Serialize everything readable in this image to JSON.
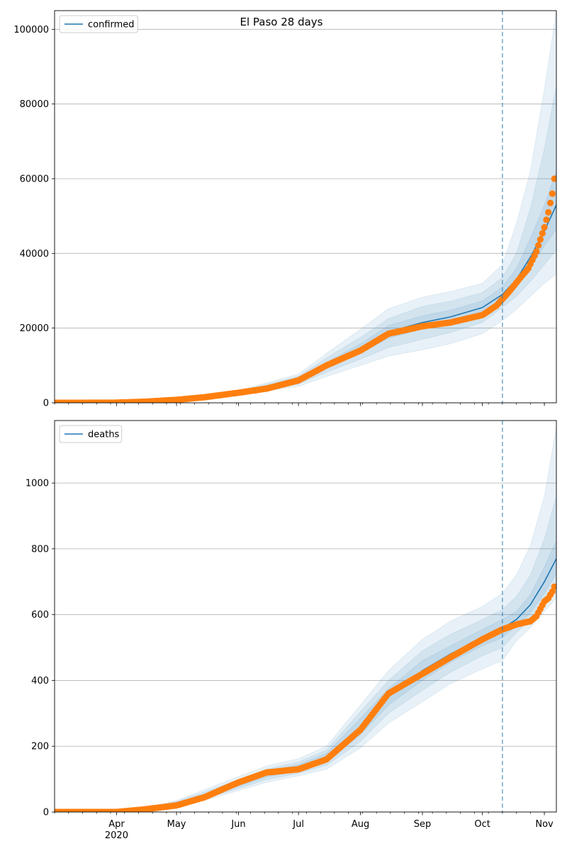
{
  "figure": {
    "title": "El Paso 28 days"
  },
  "colors": {
    "model": "#1f77b4",
    "observed": "#ff7f0e",
    "band": "#1f77b4",
    "grid": "#b0b0b0",
    "axis": "#000000"
  },
  "chart_data": [
    {
      "type": "line",
      "name": "confirmed",
      "legend": {
        "label": "confirmed",
        "position": "top-left"
      },
      "xlabel": "",
      "ylabel": "",
      "x_range": [
        "2020-03-01",
        "2020-11-07"
      ],
      "ylim": [
        0,
        105000
      ],
      "yticks": [
        0,
        20000,
        40000,
        60000,
        80000,
        100000
      ],
      "grid": "y",
      "forecast_start": "2020-10-11",
      "model_line": {
        "x": [
          "2020-03-01",
          "2020-03-15",
          "2020-04-01",
          "2020-04-15",
          "2020-05-01",
          "2020-05-15",
          "2020-06-01",
          "2020-06-15",
          "2020-07-01",
          "2020-07-15",
          "2020-08-01",
          "2020-08-15",
          "2020-09-01",
          "2020-09-15",
          "2020-10-01",
          "2020-10-11",
          "2020-10-18",
          "2020-10-25",
          "2020-11-01",
          "2020-11-07"
        ],
        "y": [
          0,
          0,
          50,
          300,
          800,
          1500,
          2700,
          3800,
          6000,
          10000,
          14500,
          19000,
          21500,
          23000,
          25500,
          29000,
          33000,
          39000,
          46000,
          53000
        ]
      },
      "bands": [
        {
          "level": "outer",
          "x": [
            "2020-03-01",
            "2020-04-01",
            "2020-05-01",
            "2020-06-01",
            "2020-07-01",
            "2020-07-15",
            "2020-08-01",
            "2020-08-15",
            "2020-09-01",
            "2020-09-15",
            "2020-10-01",
            "2020-10-11",
            "2020-10-18",
            "2020-10-25",
            "2020-11-01",
            "2020-11-07"
          ],
          "lower": [
            0,
            40,
            650,
            2100,
            4400,
            7000,
            10000,
            12500,
            14200,
            15800,
            18500,
            22000,
            25000,
            28500,
            32000,
            34500
          ],
          "upper": [
            0,
            60,
            950,
            3300,
            7700,
            13200,
            19700,
            25200,
            28300,
            29800,
            32000,
            37000,
            48000,
            62000,
            84000,
            105000
          ]
        },
        {
          "level": "middle",
          "x": [
            "2020-03-01",
            "2020-04-01",
            "2020-05-01",
            "2020-06-01",
            "2020-07-01",
            "2020-07-15",
            "2020-08-01",
            "2020-08-15",
            "2020-09-01",
            "2020-09-15",
            "2020-10-01",
            "2020-10-11",
            "2020-10-18",
            "2020-10-25",
            "2020-11-01",
            "2020-11-07"
          ],
          "lower": [
            0,
            45,
            700,
            2350,
            5000,
            8200,
            11700,
            14800,
            17000,
            18800,
            21500,
            25500,
            28500,
            32500,
            37000,
            41000
          ],
          "upper": [
            0,
            55,
            900,
            3050,
            7100,
            12000,
            17500,
            22500,
            25800,
            27200,
            29500,
            33500,
            40000,
            52000,
            68000,
            85000
          ]
        },
        {
          "level": "inner",
          "x": [
            "2020-03-01",
            "2020-04-01",
            "2020-05-01",
            "2020-06-01",
            "2020-07-01",
            "2020-07-15",
            "2020-08-01",
            "2020-08-15",
            "2020-09-01",
            "2020-09-15",
            "2020-10-01",
            "2020-10-11",
            "2020-10-18",
            "2020-10-25",
            "2020-11-01",
            "2020-11-07"
          ],
          "lower": [
            0,
            48,
            760,
            2550,
            5500,
            9200,
            13200,
            17300,
            19700,
            21200,
            23700,
            27500,
            31000,
            36000,
            42000,
            46500
          ],
          "upper": [
            0,
            52,
            840,
            2850,
            6500,
            10800,
            15800,
            20700,
            23300,
            24800,
            27300,
            31000,
            36000,
            44000,
            53000,
            62000
          ]
        }
      ],
      "observed": {
        "x": [
          "2020-03-01",
          "2020-03-15",
          "2020-04-01",
          "2020-04-15",
          "2020-05-01",
          "2020-05-15",
          "2020-06-01",
          "2020-06-15",
          "2020-07-01",
          "2020-07-15",
          "2020-08-01",
          "2020-08-15",
          "2020-09-01",
          "2020-09-15",
          "2020-10-01",
          "2020-10-08",
          "2020-10-14",
          "2020-10-20",
          "2020-10-24",
          "2020-10-28",
          "2020-11-01",
          "2020-11-03",
          "2020-11-05",
          "2020-11-06"
        ],
        "y": [
          0,
          0,
          50,
          300,
          800,
          1500,
          2700,
          3800,
          6000,
          10000,
          14000,
          18500,
          20500,
          21500,
          23500,
          26000,
          29500,
          33500,
          36000,
          40500,
          47000,
          51000,
          56000,
          60000
        ]
      }
    },
    {
      "type": "line",
      "name": "deaths",
      "legend": {
        "label": "deaths",
        "position": "top-left"
      },
      "xlabel": "",
      "ylabel": "",
      "x_range": [
        "2020-03-01",
        "2020-11-07"
      ],
      "ylim": [
        0,
        1190
      ],
      "yticks": [
        0,
        200,
        400,
        600,
        800,
        1000
      ],
      "xticks": [
        {
          "date": "2020-04-01",
          "label": "Apr",
          "sublabel": "2020"
        },
        {
          "date": "2020-05-01",
          "label": "May"
        },
        {
          "date": "2020-06-01",
          "label": "Jun"
        },
        {
          "date": "2020-07-01",
          "label": "Jul"
        },
        {
          "date": "2020-08-01",
          "label": "Aug"
        },
        {
          "date": "2020-09-01",
          "label": "Sep"
        },
        {
          "date": "2020-10-01",
          "label": "Oct"
        },
        {
          "date": "2020-11-01",
          "label": "Nov"
        }
      ],
      "grid": "y",
      "forecast_start": "2020-10-11",
      "model_line": {
        "x": [
          "2020-03-01",
          "2020-04-01",
          "2020-04-15",
          "2020-05-01",
          "2020-05-15",
          "2020-06-01",
          "2020-06-15",
          "2020-07-01",
          "2020-07-15",
          "2020-08-01",
          "2020-08-15",
          "2020-09-01",
          "2020-09-15",
          "2020-10-01",
          "2020-10-11",
          "2020-10-18",
          "2020-10-25",
          "2020-11-01",
          "2020-11-07"
        ],
        "y": [
          0,
          0,
          8,
          25,
          50,
          85,
          115,
          135,
          165,
          260,
          350,
          430,
          480,
          530,
          558,
          585,
          630,
          700,
          770
        ]
      },
      "bands": [
        {
          "level": "outer",
          "x": [
            "2020-03-01",
            "2020-04-01",
            "2020-04-15",
            "2020-05-01",
            "2020-05-15",
            "2020-06-01",
            "2020-06-15",
            "2020-07-01",
            "2020-07-15",
            "2020-08-01",
            "2020-08-15",
            "2020-09-01",
            "2020-09-15",
            "2020-10-01",
            "2020-10-11",
            "2020-10-18",
            "2020-10-25",
            "2020-11-01",
            "2020-11-07"
          ],
          "lower": [
            0,
            0,
            4,
            15,
            35,
            65,
            90,
            110,
            130,
            195,
            270,
            335,
            390,
            435,
            460,
            520,
            560,
            610,
            650
          ],
          "upper": [
            0,
            0,
            12,
            35,
            68,
            108,
            140,
            162,
            200,
            325,
            430,
            525,
            580,
            625,
            665,
            720,
            810,
            960,
            1170
          ]
        },
        {
          "level": "middle",
          "x": [
            "2020-03-01",
            "2020-04-01",
            "2020-04-15",
            "2020-05-01",
            "2020-05-15",
            "2020-06-01",
            "2020-06-15",
            "2020-07-01",
            "2020-07-15",
            "2020-08-01",
            "2020-08-15",
            "2020-09-01",
            "2020-09-15",
            "2020-10-01",
            "2020-10-11",
            "2020-10-18",
            "2020-10-25",
            "2020-11-01",
            "2020-11-07"
          ],
          "lower": [
            0,
            0,
            5,
            18,
            40,
            72,
            98,
            118,
            142,
            215,
            300,
            370,
            425,
            475,
            500,
            545,
            585,
            640,
            690
          ],
          "upper": [
            0,
            0,
            11,
            32,
            61,
            98,
            130,
            152,
            188,
            305,
            400,
            490,
            540,
            585,
            615,
            655,
            720,
            830,
            960
          ]
        },
        {
          "level": "inner",
          "x": [
            "2020-03-01",
            "2020-04-01",
            "2020-04-15",
            "2020-05-01",
            "2020-05-15",
            "2020-06-01",
            "2020-06-15",
            "2020-07-01",
            "2020-07-15",
            "2020-08-01",
            "2020-08-15",
            "2020-09-01",
            "2020-09-15",
            "2020-10-01",
            "2020-10-11",
            "2020-10-18",
            "2020-10-25",
            "2020-11-01",
            "2020-11-07"
          ],
          "lower": [
            0,
            0,
            6,
            21,
            45,
            78,
            106,
            126,
            152,
            235,
            325,
            400,
            455,
            505,
            530,
            565,
            605,
            665,
            725
          ],
          "upper": [
            0,
            0,
            10,
            29,
            55,
            92,
            124,
            144,
            178,
            285,
            375,
            460,
            505,
            555,
            585,
            610,
            660,
            745,
            825
          ]
        }
      ],
      "observed": {
        "x": [
          "2020-03-01",
          "2020-04-01",
          "2020-04-15",
          "2020-05-01",
          "2020-05-15",
          "2020-06-01",
          "2020-06-15",
          "2020-07-01",
          "2020-07-15",
          "2020-08-01",
          "2020-08-15",
          "2020-09-01",
          "2020-09-15",
          "2020-10-01",
          "2020-10-11",
          "2020-10-18",
          "2020-10-25",
          "2020-10-28",
          "2020-11-01",
          "2020-11-03",
          "2020-11-05",
          "2020-11-06"
        ],
        "y": [
          0,
          0,
          8,
          20,
          45,
          90,
          120,
          130,
          160,
          250,
          360,
          420,
          470,
          525,
          555,
          570,
          580,
          595,
          640,
          650,
          670,
          685
        ]
      }
    }
  ]
}
